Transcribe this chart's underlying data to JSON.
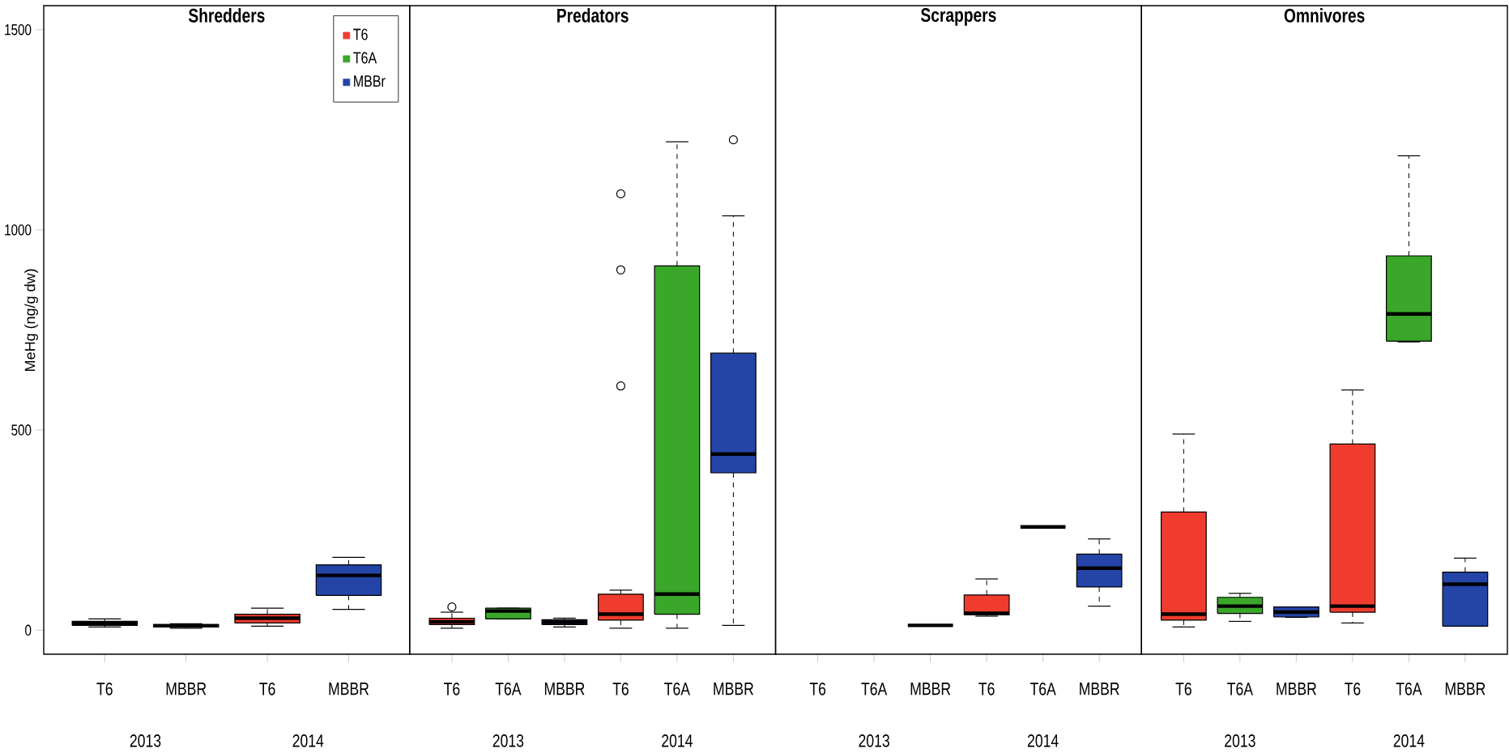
{
  "chart_data": [
    {
      "type": "box",
      "title": "Shredders",
      "ylabel": "MeHg (ng/g dw)",
      "categories": [
        "T6",
        "MBBR",
        "T6",
        "MBBR"
      ],
      "ylim": [
        -60,
        1560
      ],
      "yticks": [
        0,
        500,
        1000,
        1500
      ],
      "legend": "top right",
      "annotations": [
        "2013",
        "2014"
      ],
      "series": [
        {
          "name": "T6",
          "color": "#f03c2e",
          "boxes": [
            {
              "low": 8,
              "q1": 12,
              "median": 17,
              "q3": 22,
              "high": 28
            },
            null,
            {
              "low": 10,
              "q1": 18,
              "median": 30,
              "q3": 40,
              "high": 55
            },
            null
          ]
        },
        {
          "name": "T6A",
          "color": "#3aa62a",
          "boxes": [
            null,
            null,
            null,
            null
          ]
        },
        {
          "name": "MBBr",
          "color": "#2444a8",
          "boxes": [
            null,
            {
              "low": 5,
              "q1": 8,
              "median": 11,
              "q3": 14,
              "high": 16
            },
            null,
            {
              "low": 52,
              "q1": 87,
              "median": 137,
              "q3": 163,
              "high": 182
            }
          ]
        }
      ]
    },
    {
      "type": "box",
      "title": "Predators",
      "categories": [
        "T6",
        "T6A",
        "MBBR",
        "T6",
        "T6A",
        "MBBR"
      ],
      "ylim": [
        -60,
        1560
      ],
      "tick_labels": "x",
      "annotations": [
        "2013",
        "2014"
      ],
      "series": [
        {
          "color": "#f03c2e",
          "boxes": [
            {
              "low": 5,
              "q1": 14,
              "median": 21,
              "q3": 30,
              "high": 45,
              "outliers": [
                58
              ]
            },
            null,
            null,
            {
              "low": 5,
              "q1": 25,
              "median": 40,
              "q3": 90,
              "high": 100,
              "outliers": [
                610,
                900,
                1090
              ]
            },
            null,
            null
          ]
        },
        {
          "color": "#3aa62a",
          "boxes": [
            null,
            {
              "low": 28,
              "q1": 28,
              "median": 48,
              "q3": 55,
              "high": 55
            },
            null,
            null,
            {
              "low": 5,
              "q1": 40,
              "median": 90,
              "q3": 910,
              "high": 1220
            },
            null
          ]
        },
        {
          "color": "#2444a8",
          "boxes": [
            null,
            null,
            {
              "low": 8,
              "q1": 14,
              "median": 20,
              "q3": 26,
              "high": 30
            },
            null,
            null,
            {
              "low": 12,
              "q1": 393,
              "median": 440,
              "q3": 692,
              "high": 1035,
              "outliers": [
                1225
              ]
            }
          ]
        }
      ]
    },
    {
      "type": "box",
      "title": "Scrappers",
      "categories": [
        "T6",
        "T6A",
        "MBBR",
        "T6",
        "T6A",
        "MBBR"
      ],
      "ylim": [
        -60,
        1560
      ],
      "tick_labels": "x",
      "annotations": [
        "2013",
        "2014"
      ],
      "series": [
        {
          "color": "#f03c2e",
          "boxes": [
            null,
            null,
            null,
            {
              "low": 35,
              "q1": 38,
              "median": 42,
              "q3": 88,
              "high": 128
            },
            null,
            null
          ]
        },
        {
          "color": "#3aa62a",
          "boxes": [
            null,
            null,
            null,
            null,
            {
              "low": 258,
              "q1": 258,
              "median": 258,
              "q3": 258,
              "high": 258
            },
            null
          ]
        },
        {
          "color": "#2444a8",
          "boxes": [
            null,
            null,
            {
              "low": 12,
              "q1": 12,
              "median": 12,
              "q3": 12,
              "high": 12
            },
            null,
            null,
            {
              "low": 60,
              "q1": 108,
              "median": 155,
              "q3": 190,
              "high": 228
            }
          ]
        }
      ]
    },
    {
      "type": "box",
      "title": "Omnivores",
      "categories": [
        "T6",
        "T6A",
        "MBBR",
        "T6",
        "T6A",
        "MBBR"
      ],
      "ylim": [
        -60,
        1560
      ],
      "tick_labels": "x",
      "annotations": [
        "2013",
        "2014"
      ],
      "series": [
        {
          "color": "#f03c2e",
          "boxes": [
            {
              "low": 8,
              "q1": 25,
              "median": 40,
              "q3": 295,
              "high": 490
            },
            null,
            null,
            {
              "low": 18,
              "q1": 45,
              "median": 60,
              "q3": 465,
              "high": 600
            },
            null,
            null
          ]
        },
        {
          "color": "#3aa62a",
          "boxes": [
            null,
            {
              "low": 22,
              "q1": 42,
              "median": 60,
              "q3": 82,
              "high": 92
            },
            null,
            null,
            {
              "low": 720,
              "q1": 722,
              "median": 790,
              "q3": 935,
              "high": 1185
            },
            null
          ]
        },
        {
          "color": "#2444a8",
          "boxes": [
            null,
            null,
            {
              "low": 32,
              "q1": 33,
              "median": 45,
              "q3": 58,
              "high": 58
            },
            null,
            null,
            {
              "low": 10,
              "q1": 10,
              "median": 115,
              "q3": 145,
              "high": 180
            }
          ]
        }
      ]
    }
  ]
}
